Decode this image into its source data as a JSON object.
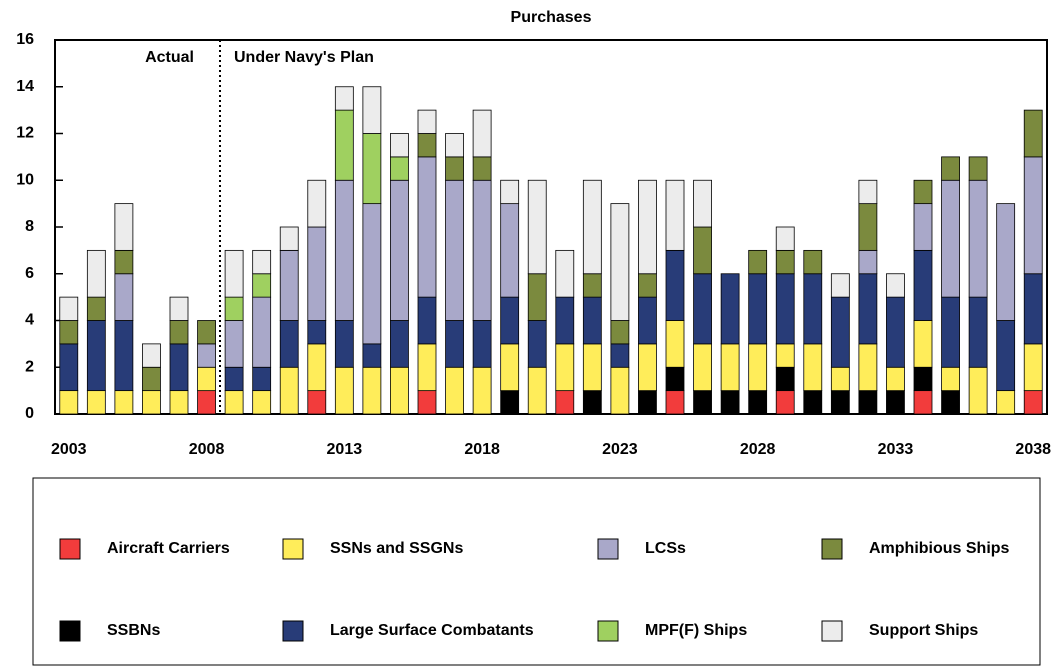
{
  "chart_data": {
    "type": "stacked-bar",
    "title": "Purchases",
    "annotations": [
      "Actual",
      "Under Navy's Plan"
    ],
    "categories": [
      "2003",
      null,
      null,
      null,
      null,
      "2008",
      null,
      null,
      null,
      null,
      "2013",
      null,
      null,
      null,
      null,
      "2018",
      null,
      null,
      null,
      null,
      "2023",
      null,
      null,
      null,
      null,
      "2028",
      null,
      null,
      null,
      null,
      "2033",
      null,
      null,
      null,
      null,
      "2038"
    ],
    "ylim": [
      0,
      16
    ],
    "yticks": [
      0,
      2,
      4,
      6,
      8,
      10,
      12,
      14,
      16
    ],
    "series": [
      {
        "name": "Aircraft Carriers",
        "color": "#f23c3c",
        "values": [
          0,
          0,
          0,
          0,
          0,
          1,
          0,
          0,
          0,
          1,
          0,
          0,
          0,
          1,
          0,
          0,
          0,
          0,
          1,
          0,
          0,
          0,
          1,
          0,
          0,
          0,
          1,
          0,
          0,
          0,
          0,
          1,
          0,
          0,
          0,
          1
        ]
      },
      {
        "name": "SSBNs",
        "color": "#000000",
        "values": [
          0,
          0,
          0,
          0,
          0,
          0,
          0,
          0,
          0,
          0,
          0,
          0,
          0,
          0,
          0,
          0,
          1,
          0,
          0,
          1,
          0,
          1,
          1,
          1,
          1,
          1,
          1,
          1,
          1,
          1,
          1,
          1,
          1,
          0,
          0,
          0
        ]
      },
      {
        "name": "SSNs and SSGNs",
        "color": "#ffed5a",
        "values": [
          1,
          1,
          1,
          1,
          1,
          1,
          1,
          1,
          2,
          2,
          2,
          2,
          2,
          2,
          2,
          2,
          2,
          2,
          2,
          2,
          2,
          2,
          2,
          2,
          2,
          2,
          1,
          2,
          1,
          2,
          1,
          2,
          1,
          2,
          1,
          2
        ]
      },
      {
        "name": "Large Surface Combatants",
        "color": "#283c78",
        "values": [
          2,
          3,
          3,
          0,
          2,
          0,
          1,
          1,
          2,
          1,
          2,
          1,
          2,
          2,
          2,
          2,
          2,
          2,
          2,
          2,
          1,
          2,
          3,
          3,
          3,
          3,
          3,
          3,
          3,
          3,
          3,
          3,
          3,
          3,
          3,
          3
        ]
      },
      {
        "name": "LCSs",
        "color": "#a9a8c9",
        "values": [
          0,
          0,
          2,
          0,
          0,
          1,
          2,
          3,
          3,
          4,
          6,
          6,
          6,
          6,
          6,
          6,
          4,
          0,
          0,
          0,
          0,
          0,
          0,
          0,
          0,
          0,
          0,
          0,
          0,
          1,
          0,
          2,
          5,
          5,
          5,
          5
        ]
      },
      {
        "name": "MPF(F) Ships",
        "color": "#9fd060",
        "values": [
          0,
          0,
          0,
          0,
          0,
          0,
          1,
          1,
          0,
          0,
          3,
          3,
          1,
          0,
          0,
          0,
          0,
          0,
          0,
          0,
          0,
          0,
          0,
          0,
          0,
          0,
          0,
          0,
          0,
          0,
          0,
          0,
          0,
          0,
          0,
          0
        ]
      },
      {
        "name": "Amphibious Ships",
        "color": "#7b8a3e",
        "values": [
          1,
          1,
          1,
          1,
          1,
          1,
          0,
          0,
          0,
          0,
          0,
          0,
          0,
          1,
          1,
          1,
          0,
          2,
          0,
          1,
          1,
          1,
          0,
          2,
          0,
          1,
          1,
          1,
          0,
          2,
          0,
          1,
          1,
          1,
          0,
          2
        ]
      },
      {
        "name": "Support Ships",
        "color": "#ececec",
        "values": [
          1,
          2,
          2,
          1,
          1,
          0,
          2,
          1,
          1,
          2,
          1,
          2,
          1,
          1,
          1,
          2,
          1,
          4,
          2,
          4,
          5,
          4,
          3,
          2,
          0,
          0,
          1,
          0,
          1,
          1,
          1,
          0,
          0,
          0,
          0,
          0
        ]
      }
    ]
  }
}
